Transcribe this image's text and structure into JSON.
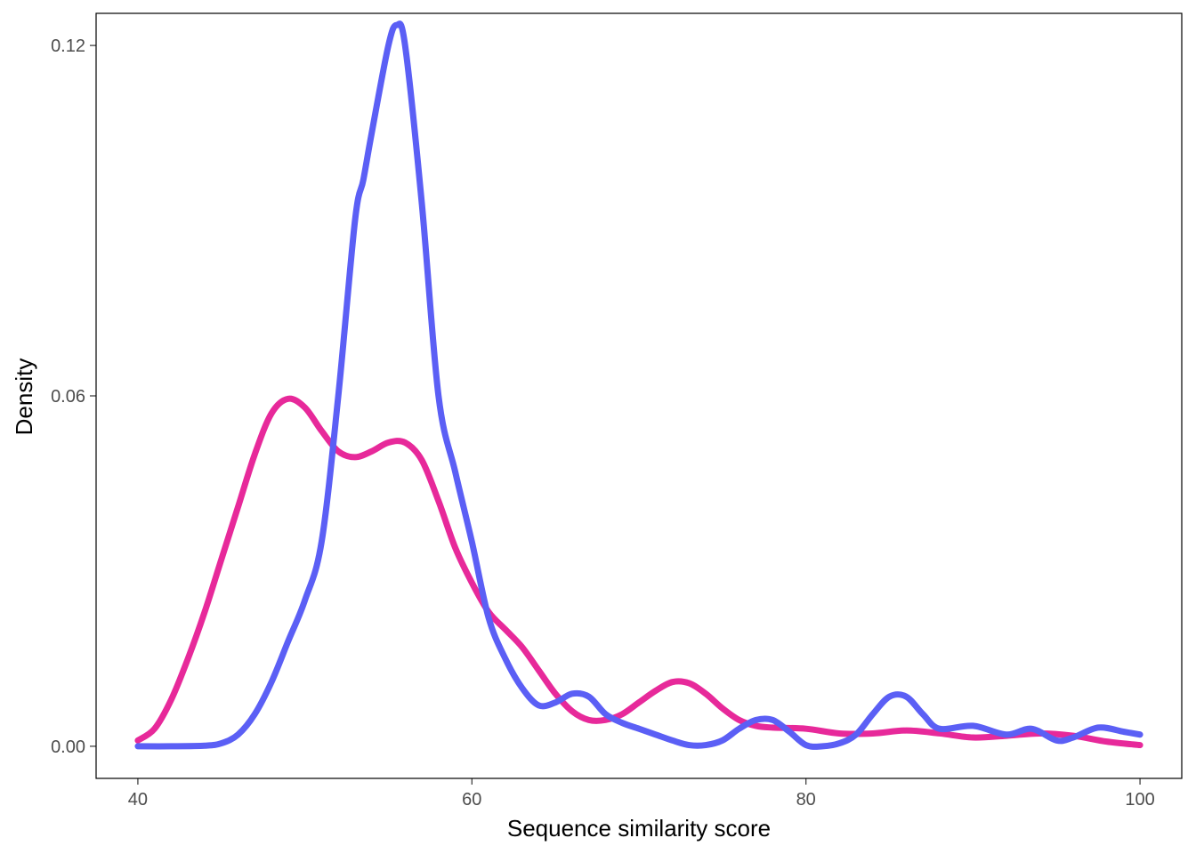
{
  "chart_data": {
    "type": "line",
    "title": "",
    "xlabel": "Sequence similarity score",
    "ylabel": "Density",
    "xlim": [
      37.5,
      102.5
    ],
    "ylim": [
      -0.0055,
      0.1255
    ],
    "x_ticks": [
      40,
      60,
      80,
      100
    ],
    "x_tick_labels": [
      "40",
      "60",
      "80",
      "100"
    ],
    "y_ticks": [
      0.0,
      0.06,
      0.12
    ],
    "y_tick_labels": [
      "0.00",
      "0.06",
      "0.12"
    ],
    "grid": false,
    "legend": "none",
    "series": [
      {
        "color": "#E7299A",
        "x": [
          40,
          41,
          42,
          43,
          44,
          45,
          46,
          47,
          48,
          49,
          50,
          51,
          52,
          53,
          54,
          55,
          56,
          57,
          58,
          59,
          60,
          61,
          62,
          63,
          64,
          65,
          66,
          67,
          68,
          69,
          70,
          71,
          72,
          73,
          74,
          75,
          76,
          77,
          78,
          80,
          82,
          84,
          86,
          88,
          90,
          92,
          94,
          96,
          98,
          100
        ],
        "y": [
          0.001,
          0.003,
          0.008,
          0.015,
          0.023,
          0.032,
          0.041,
          0.05,
          0.057,
          0.0595,
          0.058,
          0.054,
          0.0505,
          0.0495,
          0.0505,
          0.052,
          0.052,
          0.049,
          0.042,
          0.034,
          0.028,
          0.023,
          0.02,
          0.017,
          0.013,
          0.009,
          0.006,
          0.0045,
          0.0045,
          0.0055,
          0.0075,
          0.0095,
          0.011,
          0.0108,
          0.009,
          0.0065,
          0.0045,
          0.0035,
          0.0032,
          0.003,
          0.0022,
          0.0022,
          0.0027,
          0.0022,
          0.0015,
          0.0018,
          0.0022,
          0.0018,
          0.0008,
          0.0002
        ]
      },
      {
        "color": "#5B5FF5",
        "x": [
          40,
          42,
          44,
          45,
          46,
          47,
          48,
          49,
          50,
          51,
          52,
          53,
          53.5,
          54,
          55,
          55.5,
          56,
          57,
          58,
          59,
          60,
          61,
          62,
          63,
          64,
          65,
          66,
          67,
          68,
          69,
          70,
          71,
          72,
          73,
          74,
          75,
          76,
          77,
          78,
          79,
          80,
          81,
          82,
          83,
          84,
          85,
          86,
          87,
          88,
          90,
          92,
          93.5,
          95,
          96,
          97.5,
          99,
          100
        ],
        "y": [
          0.0,
          0.0,
          0.0001,
          0.0005,
          0.002,
          0.0055,
          0.011,
          0.018,
          0.025,
          0.035,
          0.06,
          0.09,
          0.097,
          0.105,
          0.12,
          0.1235,
          0.12,
          0.093,
          0.06,
          0.047,
          0.035,
          0.022,
          0.015,
          0.01,
          0.007,
          0.0075,
          0.009,
          0.0085,
          0.0055,
          0.004,
          0.003,
          0.002,
          0.001,
          0.0002,
          0.0002,
          0.001,
          0.003,
          0.0045,
          0.0045,
          0.0025,
          0.0002,
          0.0,
          0.0005,
          0.002,
          0.0055,
          0.0085,
          0.0085,
          0.0055,
          0.003,
          0.0035,
          0.002,
          0.003,
          0.001,
          0.0015,
          0.0032,
          0.0025,
          0.002
        ]
      }
    ]
  }
}
